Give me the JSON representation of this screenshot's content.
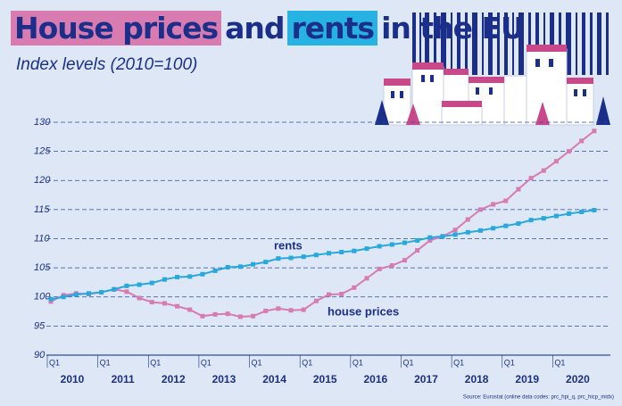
{
  "chart_data": {
    "type": "line",
    "title_parts": [
      "House prices",
      "and",
      "rents",
      "in the EU"
    ],
    "subtitle": "Index levels (2010=100)",
    "source": "Source: Eurostat (online data codes: prc_hpi_q, prc_hicp_midx)",
    "categories": [
      "Q1",
      null,
      null,
      null,
      "Q1",
      null,
      null,
      null,
      "Q1",
      null,
      null,
      null,
      "Q1",
      null,
      null,
      null,
      "Q1",
      null,
      null,
      null,
      "Q1",
      null,
      null,
      null,
      "Q1",
      null,
      null,
      null,
      "Q1",
      null,
      null,
      null,
      "Q1",
      null,
      null,
      null,
      "Q1",
      null,
      null,
      null,
      "Q1",
      null,
      null,
      null
    ],
    "year_labels": [
      "2010",
      "2011",
      "2012",
      "2013",
      "2014",
      "2015",
      "2016",
      "2017",
      "2018",
      "2019",
      "2020"
    ],
    "ylim": [
      90,
      130
    ],
    "yticks": [
      90,
      95,
      100,
      105,
      110,
      115,
      120,
      125,
      130
    ],
    "grid": true,
    "series": [
      {
        "name": "house prices",
        "color": "#d77bb0",
        "values": [
          99.2,
          100.3,
          100.6,
          100.5,
          100.8,
          101.3,
          100.9,
          99.8,
          99.1,
          98.9,
          98.4,
          97.8,
          96.7,
          97.0,
          97.1,
          96.6,
          96.7,
          97.6,
          98.0,
          97.7,
          97.8,
          99.3,
          100.4,
          100.5,
          101.6,
          103.2,
          104.8,
          105.4,
          106.3,
          108.0,
          109.7,
          110.4,
          111.5,
          113.3,
          115.0,
          115.9,
          116.5,
          118.5,
          120.4,
          121.7,
          123.3,
          125.0,
          126.8,
          128.5
        ]
      },
      {
        "name": "rents",
        "color": "#27a8df",
        "values": [
          99.6,
          100.0,
          100.4,
          100.6,
          100.8,
          101.3,
          101.9,
          102.1,
          102.4,
          103.0,
          103.4,
          103.5,
          103.9,
          104.5,
          105.1,
          105.2,
          105.6,
          106.0,
          106.6,
          106.7,
          106.9,
          107.2,
          107.5,
          107.7,
          107.9,
          108.3,
          108.7,
          109.0,
          109.3,
          109.7,
          110.2,
          110.4,
          110.7,
          111.1,
          111.4,
          111.8,
          112.2,
          112.6,
          113.2,
          113.5,
          113.9,
          114.3,
          114.6,
          114.9
        ]
      }
    ]
  }
}
